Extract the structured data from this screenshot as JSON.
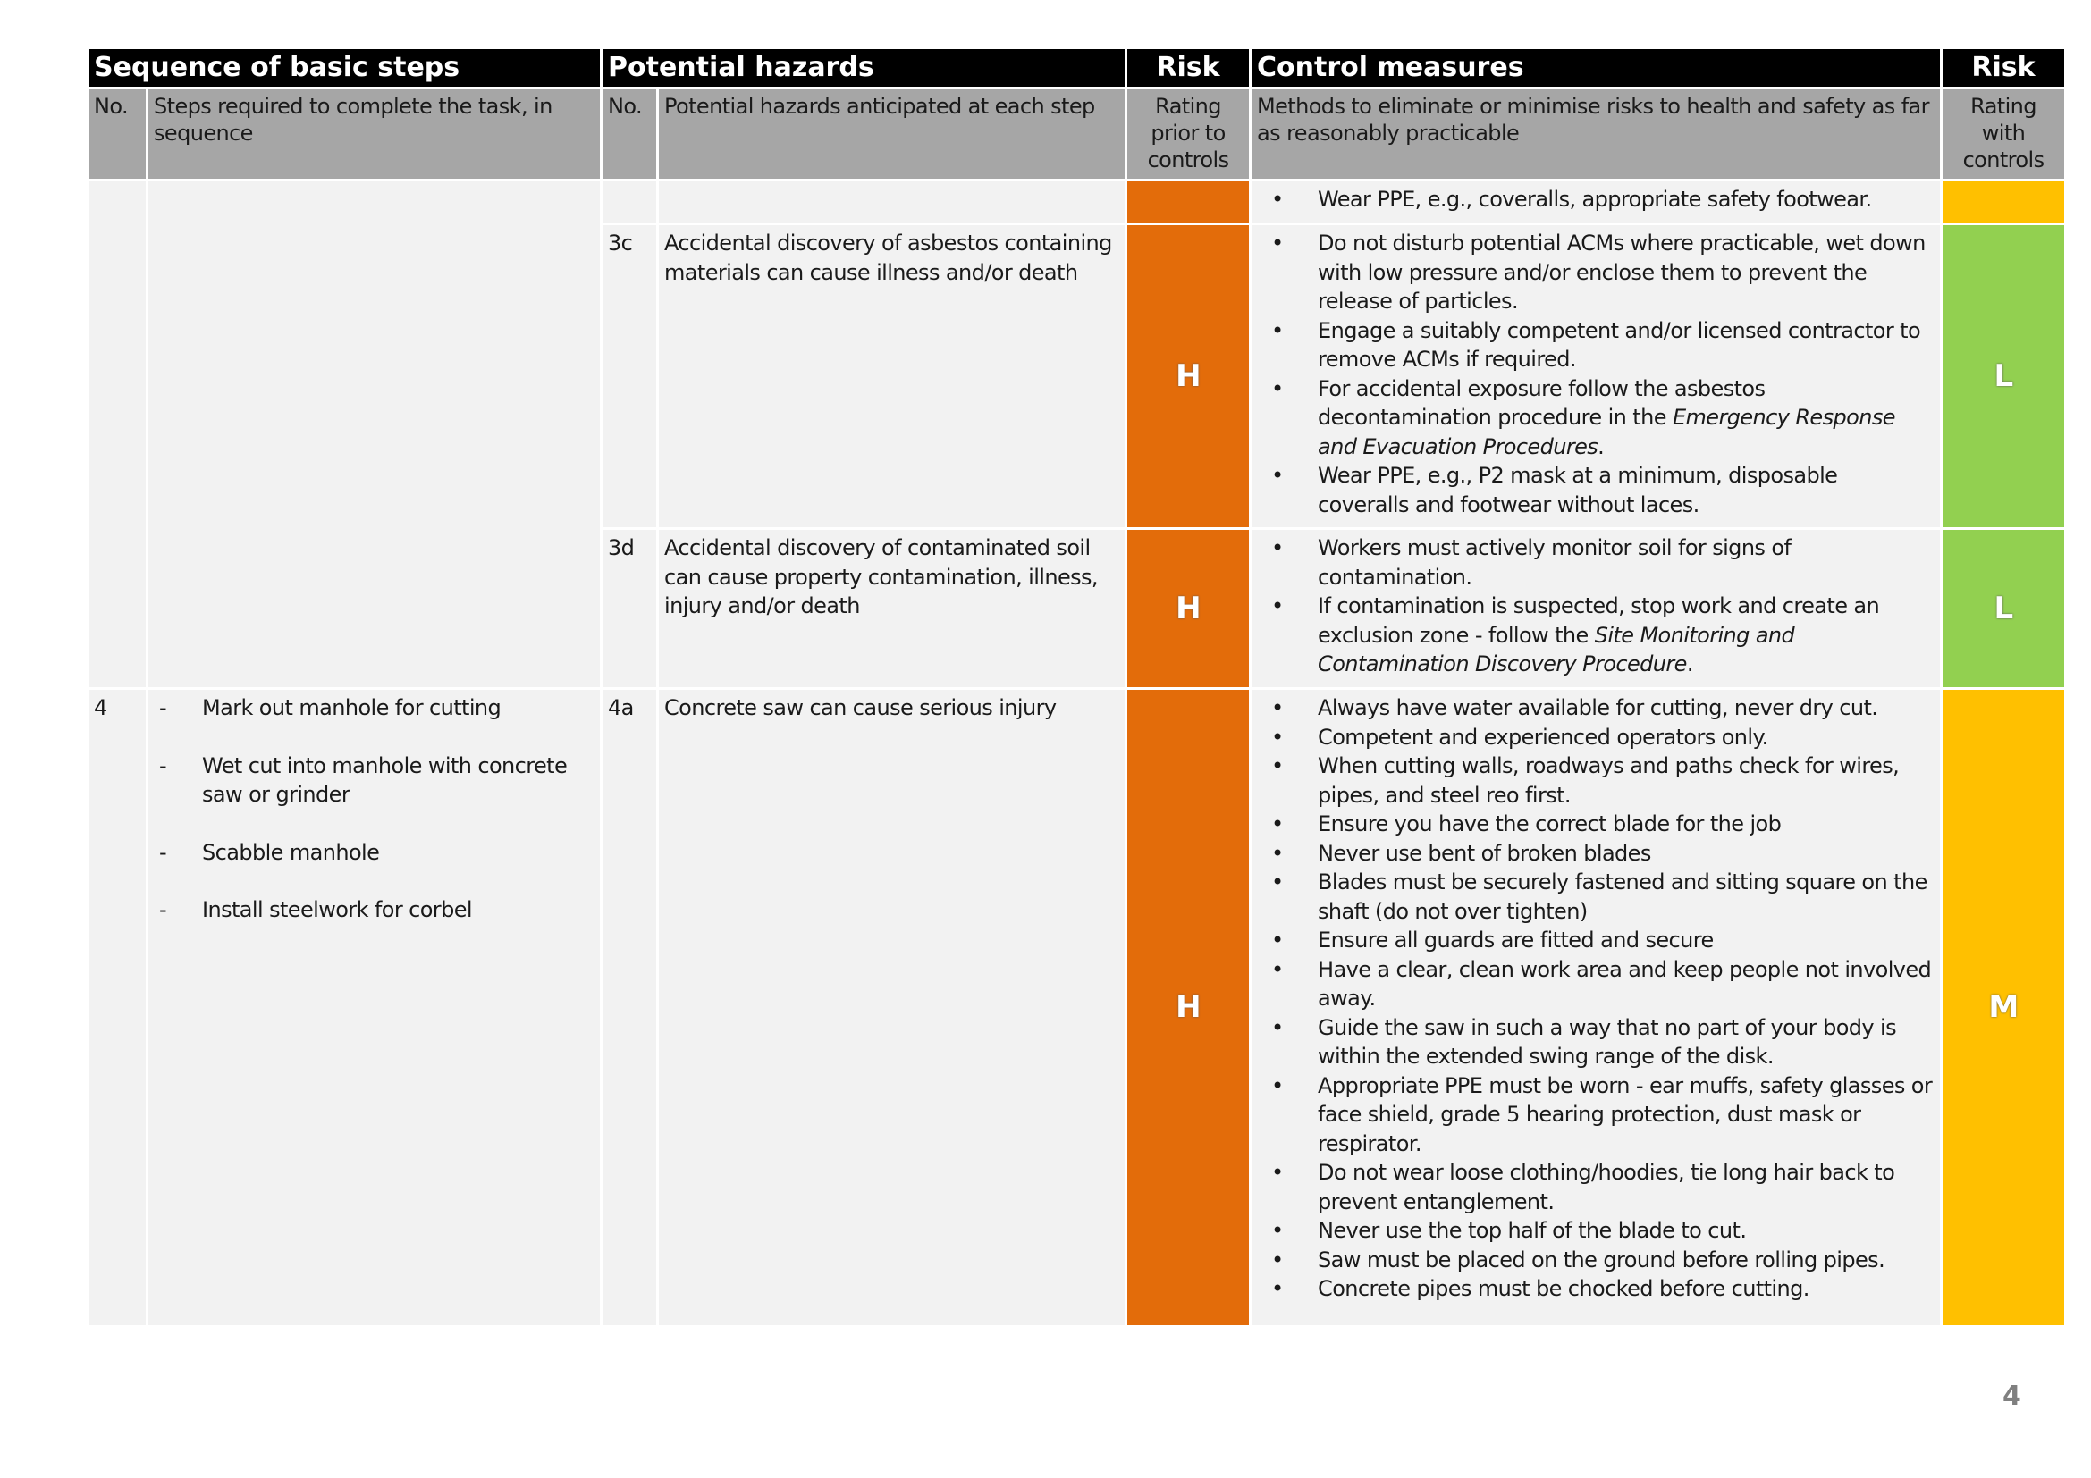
{
  "colors": {
    "H": "#e36c0a",
    "M": "#ffc000",
    "L": "#92d050"
  },
  "header": {
    "sequence": "Sequence of basic steps",
    "hazards": "Potential hazards",
    "risk_prior": "Risk",
    "controls": "Control measures",
    "risk_with": "Risk"
  },
  "subheader": {
    "no1": "No.",
    "steps": "Steps required to complete the task, in sequence",
    "no2": "No.",
    "hazard": "Potential hazards anticipated at each step",
    "rating_prior": "Rating prior to controls",
    "methods": "Methods to eliminate or minimise risks to health and safety as far as reasonably practicable",
    "rating_with": "Rating with controls"
  },
  "rows": [
    {
      "hazard_no": "",
      "hazard": "",
      "risk_prior": "",
      "risk_prior_color": "H",
      "risk_with": "",
      "risk_with_color": "M",
      "controls": [
        [
          {
            "t": "Wear PPE, e.g., coveralls, appropriate safety footwear."
          }
        ]
      ]
    },
    {
      "hazard_no": "3c",
      "hazard": "Accidental discovery of asbestos containing materials can cause illness and/or death",
      "risk_prior": "H",
      "risk_prior_color": "H",
      "risk_with": "L",
      "risk_with_color": "L",
      "controls": [
        [
          {
            "t": "Do not disturb potential ACMs where practicable, wet down with low pressure and/or enclose them to prevent the release of particles."
          }
        ],
        [
          {
            "t": "Engage a suitably competent and/or licensed contractor to remove ACMs if required."
          }
        ],
        [
          {
            "t": "For accidental exposure follow the asbestos decontamination procedure in the "
          },
          {
            "t": "Emergency Response and Evacuation Procedures",
            "i": true
          },
          {
            "t": "."
          }
        ],
        [
          {
            "t": "Wear PPE, e.g., P2 mask at a minimum, disposable coveralls and footwear without laces."
          }
        ]
      ]
    },
    {
      "hazard_no": "3d",
      "hazard": "Accidental discovery of contaminated soil can cause property contamination, illness, injury and/or death",
      "risk_prior": "H",
      "risk_prior_color": "H",
      "risk_with": "L",
      "risk_with_color": "L",
      "controls": [
        [
          {
            "t": "Workers must actively monitor soil for signs of contamination."
          }
        ],
        [
          {
            "t": "If contamination is suspected, stop work and create an exclusion zone - follow the "
          },
          {
            "t": "Site Monitoring and Contamination Discovery Procedure",
            "i": true
          },
          {
            "t": "."
          }
        ]
      ]
    },
    {
      "step_no": "4",
      "steps": [
        "Mark out manhole for cutting",
        "Wet cut into manhole with concrete saw or grinder",
        "Scabble manhole",
        "Install steelwork for corbel"
      ],
      "hazard_no": "4a",
      "hazard": "Concrete saw can cause serious injury",
      "risk_prior": "H",
      "risk_prior_color": "H",
      "risk_with": "M",
      "risk_with_color": "M",
      "controls": [
        [
          {
            "t": "Always have water available for cutting, never dry cut."
          }
        ],
        [
          {
            "t": "Competent and experienced operators only."
          }
        ],
        [
          {
            "t": "When cutting walls, roadways and paths check for wires, pipes, and steel reo first."
          }
        ],
        [
          {
            "t": "Ensure you have the correct blade for the job"
          }
        ],
        [
          {
            "t": "Never use bent of broken blades"
          }
        ],
        [
          {
            "t": "Blades must be securely fastened and sitting square on the shaft (do not over tighten)"
          }
        ],
        [
          {
            "t": "Ensure all guards are fitted and secure"
          }
        ],
        [
          {
            "t": "Have a clear, clean work area and keep people not involved away."
          }
        ],
        [
          {
            "t": "Guide the saw in such a way that no part of your body is within the extended swing range of the disk."
          }
        ],
        [
          {
            "t": "Appropriate PPE must be worn - ear muffs, safety glasses or face shield, grade 5 hearing protection, dust mask or respirator."
          }
        ],
        [
          {
            "t": "Do not wear loose clothing/hoodies, tie long hair back to prevent entanglement."
          }
        ],
        [
          {
            "t": "Never use the top half of the blade to cut."
          }
        ],
        [
          {
            "t": "Saw must be placed on the ground before rolling pipes."
          }
        ],
        [
          {
            "t": "Concrete pipes must be chocked before cutting."
          }
        ]
      ]
    }
  ],
  "page_number": "4"
}
